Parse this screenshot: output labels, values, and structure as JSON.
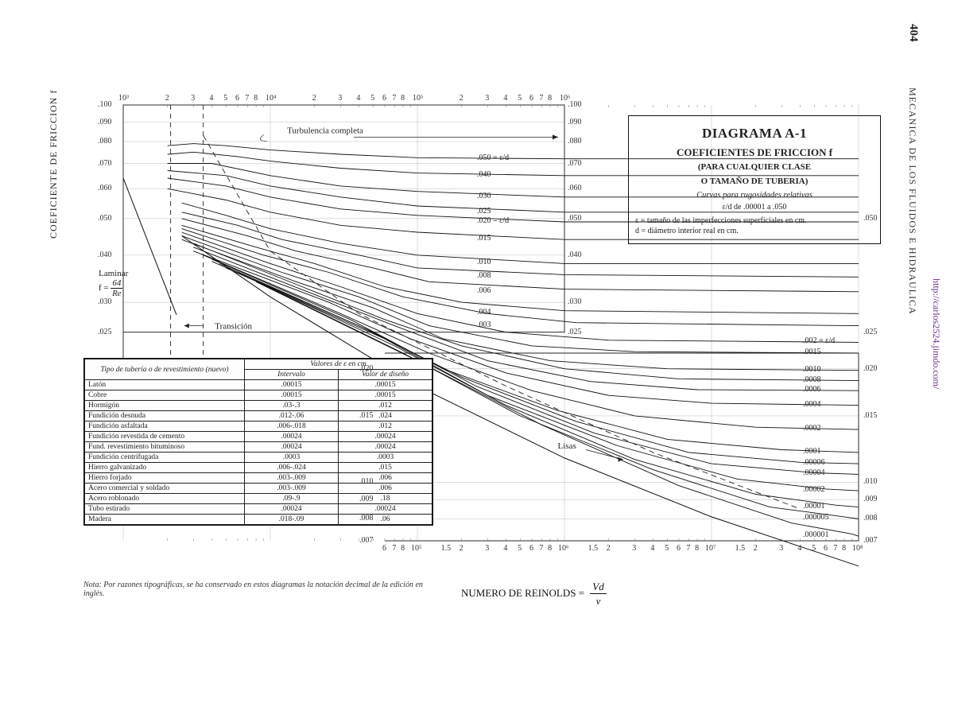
{
  "page": {
    "number": "404",
    "book_title": "MECANICA DE LOS FLUIDOS E HIDRAULICA",
    "url_text": "http://carlos2524.jimdo.com/",
    "url_color": "#6a2b8c"
  },
  "background_color": "#ffffff",
  "stroke_color": "#222222",
  "grid_color": "#555555",
  "title_box": {
    "title": "DIAGRAMA A-1",
    "subtitle": "COEFICIENTES DE FRICCION f",
    "line3": "(PARA CUALQUIER CLASE",
    "line4": "O TAMAÑO DE TUBERIA)",
    "curves_heading": "Curvas para rugosidades relativas",
    "range": "ε/d de .00001 a .050",
    "eps_note": "ε = tamaño de las imperfecciones superficiales en cm.",
    "d_note": "d = diámetro interior real en cm."
  },
  "y_axis": {
    "caption": "COEFICIENTE DE FRICCION f",
    "scale": "log",
    "min": 0.007,
    "max": 0.1,
    "ticks": [
      ".100",
      ".090",
      ".080",
      ".070",
      ".060",
      ".050",
      ".040",
      ".030",
      ".025"
    ],
    "ticks_inner_right": [
      ".100",
      ".090",
      ".080",
      ".070",
      ".060",
      ".050",
      ".040",
      ".030",
      ".025"
    ],
    "ticks_lower_right": [
      ".050",
      ".025",
      ".020",
      ".015",
      ".010",
      ".009",
      ".008",
      ".007"
    ],
    "lower_left_ticks": [
      ".020",
      ".015",
      ".010",
      ".009",
      ".008",
      ".007"
    ]
  },
  "x_axis": {
    "caption_prefix": "NUMERO DE REINOLDS =",
    "frac_num": "Vd",
    "frac_den": "ν",
    "scale": "log",
    "min": 1000,
    "max": 100000000.0,
    "top_decades": [
      "10³",
      "2",
      "3",
      "4",
      "5",
      "6",
      "7",
      "8",
      "10⁴",
      "2",
      "3",
      "4",
      "5",
      "6",
      "7",
      "8",
      "10⁵",
      "2",
      "3",
      "4",
      "5",
      "6",
      "7",
      "8",
      "10⁶"
    ],
    "bottom_decades": [
      "6",
      "7",
      "8",
      "10⁵",
      "1.5",
      "2",
      "3",
      "4",
      "5",
      "6",
      "7",
      "8",
      "10⁶",
      "1.5",
      "2",
      "3",
      "4",
      "5",
      "6",
      "7",
      "8",
      "10⁷",
      "1.5",
      "2",
      "3",
      "4",
      "5",
      "6",
      "7",
      "8",
      "10⁸"
    ]
  },
  "annotations": {
    "laminar_title": "Laminar",
    "laminar_formula_lhs": "f =",
    "laminar_formula_num": "64",
    "laminar_formula_den": "Re",
    "transicion": "Transición",
    "turb_completa": "Turbulencia completa",
    "lisas": "Lisas"
  },
  "moody": {
    "type": "log-log-line-family",
    "line_color": "#111111",
    "line_width": 0.9,
    "curves": [
      {
        "eps_d": 0.05,
        "label": ".050 = ε/d",
        "f_high": 0.072,
        "pts": [
          [
            2000.0,
            0.078
          ],
          [
            3000.0,
            0.079
          ],
          [
            5000.0,
            0.078
          ],
          [
            10000.0,
            0.076
          ],
          [
            30000.0,
            0.074
          ],
          [
            100000.0,
            0.0725
          ],
          [
            1000000.0,
            0.072
          ],
          [
            100000000.0,
            0.072
          ]
        ]
      },
      {
        "eps_d": 0.04,
        "label": ".040",
        "f_high": 0.065,
        "pts": [
          [
            2000.0,
            0.074
          ],
          [
            3000.0,
            0.075
          ],
          [
            6000.0,
            0.073
          ],
          [
            10000.0,
            0.071
          ],
          [
            30000.0,
            0.068
          ],
          [
            100000.0,
            0.066
          ],
          [
            1000000.0,
            0.065
          ],
          [
            100000000.0,
            0.065
          ]
        ]
      },
      {
        "eps_d": 0.03,
        "label": ".030",
        "f_high": 0.057,
        "pts": [
          [
            2000.0,
            0.07
          ],
          [
            4000.0,
            0.07
          ],
          [
            10000.0,
            0.065
          ],
          [
            30000.0,
            0.061
          ],
          [
            100000.0,
            0.059
          ],
          [
            1000000.0,
            0.057
          ],
          [
            100000000.0,
            0.057
          ]
        ]
      },
      {
        "eps_d": 0.025,
        "label": ".025",
        "f_high": 0.052,
        "pts": [
          [
            2000.0,
            0.067
          ],
          [
            5000.0,
            0.065
          ],
          [
            10000.0,
            0.061
          ],
          [
            30000.0,
            0.057
          ],
          [
            100000.0,
            0.054
          ],
          [
            1000000.0,
            0.052
          ],
          [
            100000000.0,
            0.052
          ]
        ]
      },
      {
        "eps_d": 0.02,
        "label": ".020 = ε/d",
        "f_high": 0.049,
        "pts": [
          [
            2000.0,
            0.064
          ],
          [
            5000.0,
            0.061
          ],
          [
            10000.0,
            0.057
          ],
          [
            30000.0,
            0.053
          ],
          [
            100000.0,
            0.051
          ],
          [
            1000000.0,
            0.049
          ],
          [
            100000000.0,
            0.049
          ]
        ]
      },
      {
        "eps_d": 0.015,
        "label": ".015",
        "f_high": 0.044,
        "pts": [
          [
            2000.0,
            0.06
          ],
          [
            5000.0,
            0.056
          ],
          [
            10000.0,
            0.052
          ],
          [
            30000.0,
            0.048
          ],
          [
            100000.0,
            0.046
          ],
          [
            1000000.0,
            0.044
          ],
          [
            100000000.0,
            0.044
          ]
        ]
      },
      {
        "eps_d": 0.01,
        "label": ".010",
        "f_high": 0.038,
        "pts": [
          [
            2500.0,
            0.055
          ],
          [
            5000.0,
            0.051
          ],
          [
            10000.0,
            0.047
          ],
          [
            30000.0,
            0.043
          ],
          [
            100000.0,
            0.04
          ],
          [
            1000000.0,
            0.038
          ],
          [
            100000000.0,
            0.038
          ]
        ]
      },
      {
        "eps_d": 0.008,
        "label": ".008",
        "f_high": 0.035,
        "pts": [
          [
            2500.0,
            0.052
          ],
          [
            6000.0,
            0.048
          ],
          [
            12000.0,
            0.044
          ],
          [
            40000.0,
            0.04
          ],
          [
            100000.0,
            0.037
          ],
          [
            1000000.0,
            0.0355
          ],
          [
            100000000.0,
            0.035
          ]
        ]
      },
      {
        "eps_d": 0.006,
        "label": ".006",
        "f_high": 0.032,
        "pts": [
          [
            2500.0,
            0.05
          ],
          [
            7000.0,
            0.045
          ],
          [
            15000.0,
            0.041
          ],
          [
            50000.0,
            0.037
          ],
          [
            120000.0,
            0.034
          ],
          [
            1000000.0,
            0.0325
          ],
          [
            100000000.0,
            0.032
          ]
        ]
      },
      {
        "eps_d": 0.004,
        "label": ".004",
        "f_high": 0.028,
        "pts": [
          [
            2500.0,
            0.048
          ],
          [
            8000.0,
            0.042
          ],
          [
            20000.0,
            0.038
          ],
          [
            60000.0,
            0.033
          ],
          [
            200000.0,
            0.03
          ],
          [
            1000000.0,
            0.0285
          ],
          [
            100000000.0,
            0.028
          ]
        ]
      },
      {
        "eps_d": 0.003,
        "label": ".003",
        "f_high": 0.026,
        "pts": [
          [
            2500.0,
            0.047
          ],
          [
            9000.0,
            0.04
          ],
          [
            25000.0,
            0.036
          ],
          [
            80000.0,
            0.031
          ],
          [
            300000.0,
            0.028
          ],
          [
            1200000.0,
            0.0265
          ],
          [
            100000000.0,
            0.026
          ]
        ]
      },
      {
        "eps_d": 0.002,
        "label": ".002 = ε/d",
        "f_high": 0.0235,
        "pts": [
          [
            2500.0,
            0.046
          ],
          [
            10000.0,
            0.038
          ],
          [
            30000.0,
            0.033
          ],
          [
            100000.0,
            0.028
          ],
          [
            400000.0,
            0.025
          ],
          [
            2000000.0,
            0.0238
          ],
          [
            100000000.0,
            0.0235
          ]
        ]
      },
      {
        "eps_d": 0.0015,
        "label": ".0015",
        "f_high": 0.022,
        "pts": [
          [
            2500.0,
            0.045
          ],
          [
            12000.0,
            0.036
          ],
          [
            40000.0,
            0.031
          ],
          [
            120000.0,
            0.026
          ],
          [
            600000.0,
            0.023
          ],
          [
            3000000.0,
            0.0222
          ],
          [
            100000000.0,
            0.022
          ]
        ]
      },
      {
        "eps_d": 0.001,
        "label": ".0010",
        "f_high": 0.0198,
        "pts": [
          [
            2500.0,
            0.044
          ],
          [
            15000.0,
            0.034
          ],
          [
            50000.0,
            0.029
          ],
          [
            150000.0,
            0.024
          ],
          [
            800000.0,
            0.021
          ],
          [
            5000000.0,
            0.02
          ],
          [
            100000000.0,
            0.0198
          ]
        ]
      },
      {
        "eps_d": 0.0008,
        "label": ".0008",
        "f_high": 0.0186,
        "pts": [
          [
            3000.0,
            0.043
          ],
          [
            20000.0,
            0.032
          ],
          [
            60000.0,
            0.027
          ],
          [
            200000.0,
            0.023
          ],
          [
            1000000.0,
            0.02
          ],
          [
            6000000.0,
            0.0188
          ],
          [
            100000000.0,
            0.0186
          ]
        ]
      },
      {
        "eps_d": 0.0006,
        "label": ".0006",
        "f_high": 0.0175,
        "pts": [
          [
            3000.0,
            0.042
          ],
          [
            22000.0,
            0.031
          ],
          [
            70000.0,
            0.026
          ],
          [
            300000.0,
            0.021
          ],
          [
            1500000.0,
            0.0185
          ],
          [
            8000000.0,
            0.0176
          ],
          [
            100000000.0,
            0.0175
          ]
        ]
      },
      {
        "eps_d": 0.0004,
        "label": ".0004",
        "f_high": 0.016,
        "pts": [
          [
            3000.0,
            0.041
          ],
          [
            25000.0,
            0.03
          ],
          [
            90000.0,
            0.024
          ],
          [
            400000.0,
            0.0195
          ],
          [
            2000000.0,
            0.017
          ],
          [
            10000000.0,
            0.0162
          ],
          [
            100000000.0,
            0.016
          ]
        ]
      },
      {
        "eps_d": 0.0002,
        "label": ".0002",
        "f_high": 0.0138,
        "pts": [
          [
            3500.0,
            0.04
          ],
          [
            30000.0,
            0.028
          ],
          [
            120000.0,
            0.022
          ],
          [
            600000.0,
            0.0175
          ],
          [
            3000000.0,
            0.015
          ],
          [
            20000000.0,
            0.014
          ],
          [
            100000000.0,
            0.0138
          ]
        ]
      },
      {
        "eps_d": 0.0001,
        "label": ".0001",
        "f_high": 0.012,
        "pts": [
          [
            4000.0,
            0.039
          ],
          [
            35000.0,
            0.027
          ],
          [
            150000.0,
            0.02
          ],
          [
            900000.0,
            0.0155
          ],
          [
            5000000.0,
            0.013
          ],
          [
            30000000.0,
            0.0122
          ],
          [
            100000000.0,
            0.012
          ]
        ]
      },
      {
        "eps_d": 6e-05,
        "label": ".00006",
        "f_high": 0.0112,
        "pts": [
          [
            4000.0,
            0.0385
          ],
          [
            40000.0,
            0.026
          ],
          [
            200000.0,
            0.019
          ],
          [
            1200000.0,
            0.0145
          ],
          [
            7000000.0,
            0.012
          ],
          [
            40000000.0,
            0.0113
          ],
          [
            100000000.0,
            0.0112
          ]
        ]
      },
      {
        "eps_d": 4e-05,
        "label": ".00004",
        "f_high": 0.0105,
        "pts": [
          [
            4500.0,
            0.038
          ],
          [
            50000.0,
            0.025
          ],
          [
            250000.0,
            0.018
          ],
          [
            1600000.0,
            0.0135
          ],
          [
            10000000.0,
            0.0112
          ],
          [
            50000000.0,
            0.0106
          ],
          [
            100000000.0,
            0.0105
          ]
        ]
      },
      {
        "eps_d": 2e-05,
        "label": ".00002",
        "f_high": 0.0095,
        "pts": [
          [
            5000.0,
            0.037
          ],
          [
            60000.0,
            0.024
          ],
          [
            300000.0,
            0.017
          ],
          [
            2300000.0,
            0.0125
          ],
          [
            15000000.0,
            0.0102
          ],
          [
            60000000.0,
            0.0096
          ],
          [
            100000000.0,
            0.0095
          ]
        ]
      },
      {
        "eps_d": 1e-05,
        "label": ".00001",
        "f_high": 0.0086,
        "pts": [
          [
            6000.0,
            0.036
          ],
          [
            70000.0,
            0.023
          ],
          [
            400000.0,
            0.016
          ],
          [
            3000000.0,
            0.0115
          ],
          [
            20000000.0,
            0.0093
          ],
          [
            70000000.0,
            0.0087
          ],
          [
            100000000.0,
            0.0086
          ]
        ]
      },
      {
        "eps_d": 5e-06,
        "label": ".000005",
        "f_high": 0.008,
        "pts": [
          [
            7000.0,
            0.035
          ],
          [
            80000.0,
            0.022
          ],
          [
            500000.0,
            0.015
          ],
          [
            4000000.0,
            0.0108
          ],
          [
            25000000.0,
            0.0086
          ],
          [
            80000000.0,
            0.0081
          ],
          [
            100000000.0,
            0.008
          ]
        ]
      },
      {
        "eps_d": 1e-06,
        "label": ".000001",
        "f_high": 0.0072,
        "pts": [
          [
            8000.0,
            0.034
          ],
          [
            100000.0,
            0.021
          ],
          [
            700000.0,
            0.0142
          ],
          [
            6000000.0,
            0.0098
          ],
          [
            35000000.0,
            0.0078
          ],
          [
            90000000.0,
            0.0073
          ],
          [
            100000000.0,
            0.0072
          ]
        ]
      }
    ],
    "laminar_line": {
      "pts": [
        [
          1000.0,
          0.064
        ],
        [
          2300.0,
          0.0278
        ]
      ]
    },
    "smooth_line": {
      "pts": [
        [
          2500.0,
          0.045
        ],
        [
          10000.0,
          0.031
        ],
        [
          100000.0,
          0.018
        ],
        [
          1000000.0,
          0.0116
        ],
        [
          10000000.0,
          0.0081
        ],
        [
          100000000.0,
          0.006
        ]
      ]
    },
    "transition_line": {
      "pts": [
        [
          3500.0,
          0.083
        ],
        [
          10000.0,
          0.041
        ],
        [
          40000.0,
          0.028
        ],
        [
          400000.0,
          0.018
        ],
        [
          4000000.0,
          0.012
        ],
        [
          40000000.0,
          0.0085
        ]
      ]
    },
    "critical_band": {
      "re_lo": 2100,
      "re_hi": 3500
    }
  },
  "materials_table": {
    "header1": "Tipo de tubería o de revestimiento (nuevo)",
    "header2": "Valores de ε en cm",
    "col2": "Intervalo",
    "col3": "Valor de diseño",
    "rows": [
      [
        "Latón",
        ".00015",
        ".00015"
      ],
      [
        "Cobre",
        ".00015",
        ".00015"
      ],
      [
        "Hormigón",
        ".03-.3",
        ".012"
      ],
      [
        "Fundición desnuda",
        ".012-.06",
        ".024"
      ],
      [
        "Fundición asfaltada",
        ".006-.018",
        ".012"
      ],
      [
        "Fundición revestida de cemento",
        ".00024",
        ".00024"
      ],
      [
        "Fund. revestimiento bituminoso",
        ".00024",
        ".00024"
      ],
      [
        "Fundición centrifugada",
        ".0003",
        ".0003"
      ],
      [
        "Hierro galvanizado",
        ".006-.024",
        ".015"
      ],
      [
        "Hierro forjado",
        ".003-.009",
        ".006"
      ],
      [
        "Acero comercial y soldado",
        ".003-.009",
        ".006"
      ],
      [
        "Acero roblonado",
        ".09-.9",
        ".18"
      ],
      [
        "Tubo estirado",
        ".00024",
        ".00024"
      ],
      [
        "Madera",
        ".018-.09",
        ".06"
      ]
    ]
  },
  "footnote": "Nota: Por razones tipográficas, se ha conservado en estos diagramas la notación decimal de la edición en inglés."
}
